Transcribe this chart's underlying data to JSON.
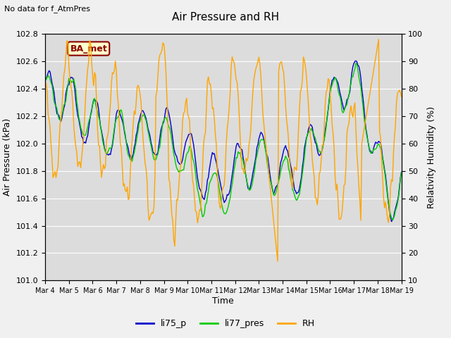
{
  "title": "Air Pressure and RH",
  "top_left_note": "No data for f_AtmPres",
  "annotation_label": "BA_met",
  "xlabel": "Time",
  "ylabel_left": "Air Pressure (kPa)",
  "ylabel_right": "Relativity Humidity (%)",
  "left_ylim": [
    101.0,
    102.8
  ],
  "right_ylim": [
    10,
    100
  ],
  "left_yticks": [
    101.0,
    101.2,
    101.4,
    101.6,
    101.8,
    102.0,
    102.2,
    102.4,
    102.6,
    102.8
  ],
  "right_yticks": [
    10,
    20,
    30,
    40,
    50,
    60,
    70,
    80,
    90,
    100
  ],
  "xtick_labels": [
    "Mar 4",
    "Mar 5",
    "Mar 6",
    "Mar 7",
    "Mar 8",
    "Mar 9",
    "Mar 10",
    "Mar 11",
    "Mar 12",
    "Mar 13",
    "Mar 14",
    "Mar 15",
    "Mar 16",
    "Mar 17",
    "Mar 18",
    "Mar 19"
  ],
  "color_li75": "#0000cc",
  "color_li77": "#00cc00",
  "color_rh": "#ffa500",
  "legend_labels": [
    "li75_p",
    "li77_pres",
    "RH"
  ],
  "fig_bg_color": "#f0f0f0",
  "plot_bg_color": "#dcdcdc",
  "grid_color": "#ffffff",
  "annotation_bg": "#ffffcc",
  "annotation_border": "#8b0000"
}
